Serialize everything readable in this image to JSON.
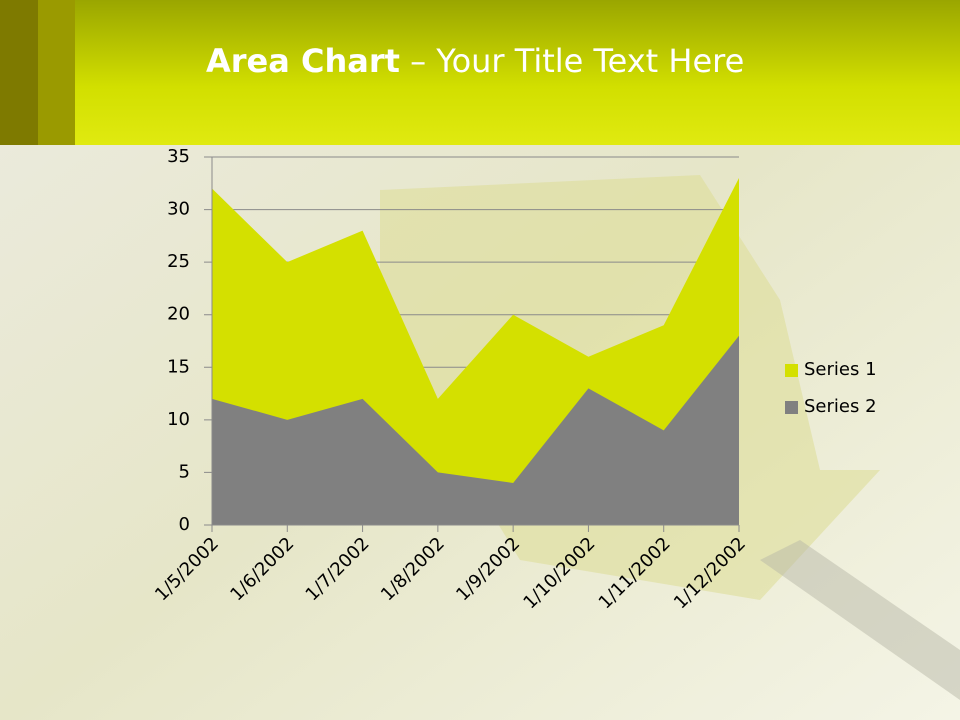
{
  "chart_data": {
    "type": "area",
    "title": "Area Chart",
    "subtitle": "– Your Title Text Here",
    "categories": [
      "1/5/2002",
      "1/6/2002",
      "1/7/2002",
      "1/8/2002",
      "1/9/2002",
      "1/10/2002",
      "1/11/2002",
      "1/12/2002"
    ],
    "series": [
      {
        "name": "Series 1",
        "color": "#d4e000",
        "values": [
          32,
          25,
          28,
          12,
          20,
          16,
          19,
          33
        ]
      },
      {
        "name": "Series 2",
        "color": "#808080",
        "values": [
          12,
          10,
          12,
          5,
          4,
          13,
          9,
          18
        ]
      }
    ],
    "ylim": [
      0,
      35
    ],
    "yticks": [
      0,
      5,
      10,
      15,
      20,
      25,
      30,
      35
    ],
    "grid": true,
    "legend": "right"
  }
}
